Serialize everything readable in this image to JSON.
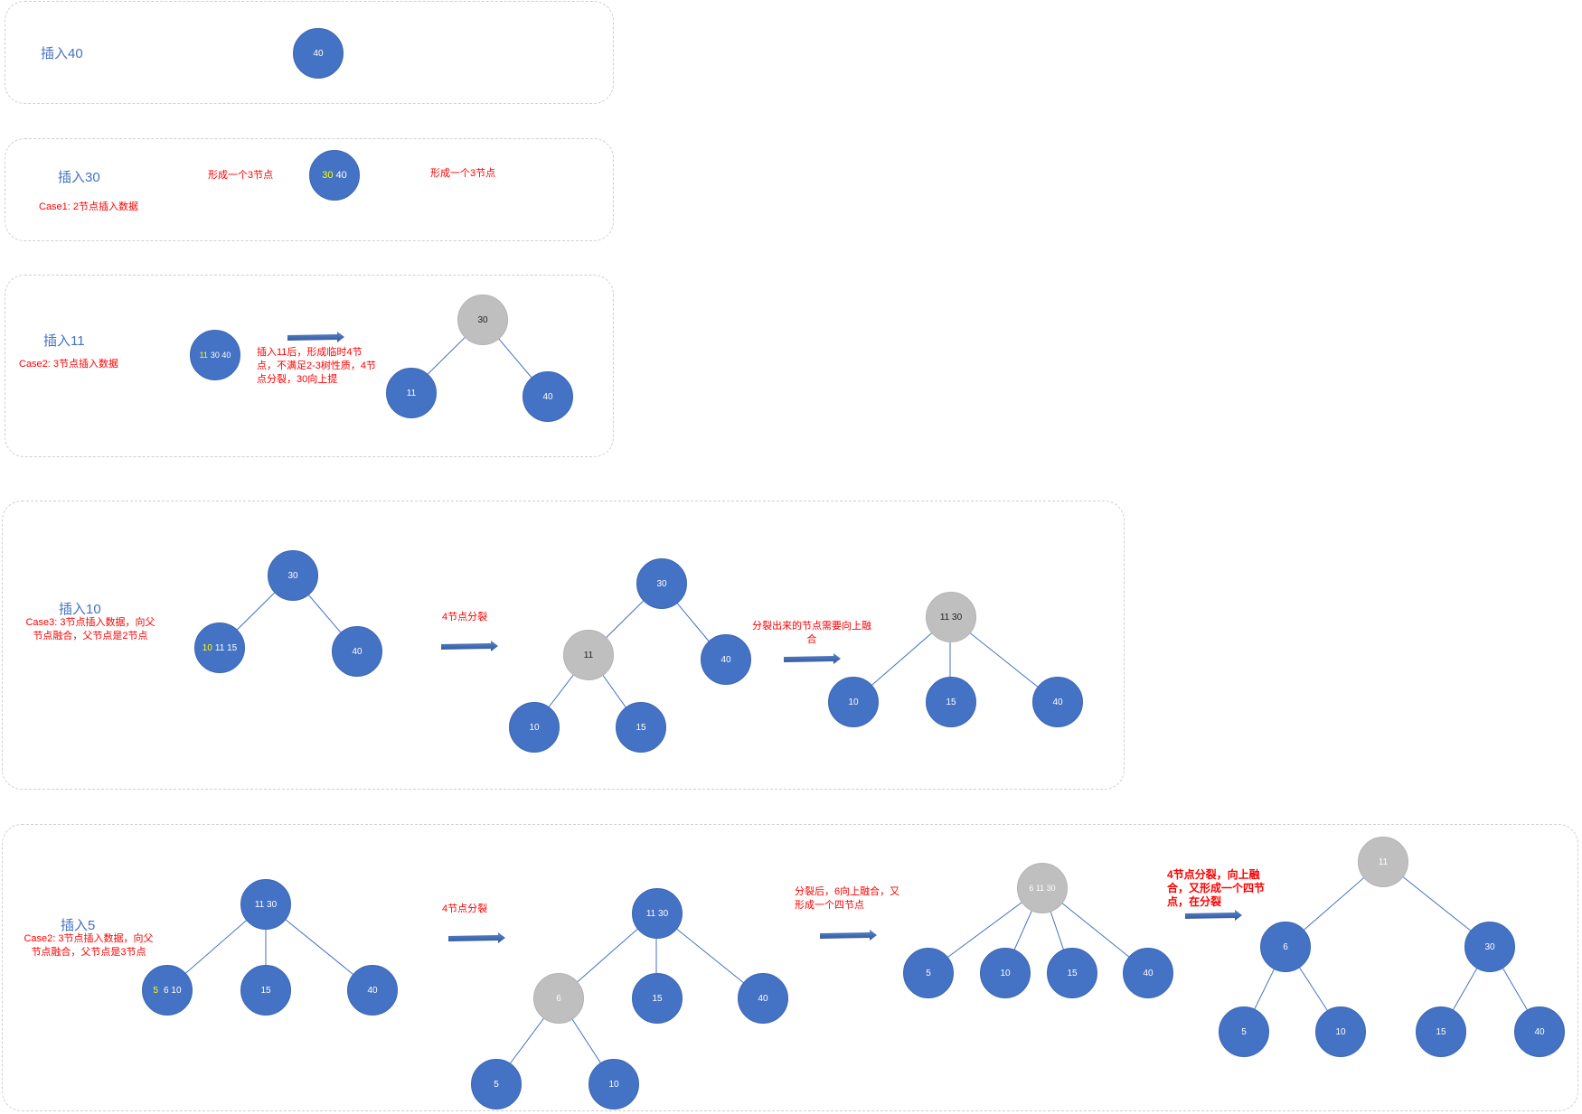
{
  "colors": {
    "node_blue": "#4472c4",
    "node_gray": "#bfbfbf",
    "highlight": "#ffff00",
    "note_red": "#ff0000",
    "title_blue": "#4472c4",
    "arrow": "#3a63a8"
  },
  "panel1": {
    "title": "插入40",
    "node_root": "40"
  },
  "panel2": {
    "title": "插入30",
    "case": "Case1: 2节点插入数据",
    "note_left": "形成一个3节点",
    "note_right": "形成一个3节点",
    "node_hl": "30",
    "node_rest": "40"
  },
  "panel3": {
    "title": "插入11",
    "case": "Case2: 3节点插入数据",
    "note": "插入11后，形成临时4节点，不满足2-3树性质，4节点分裂，30向上提",
    "temp_hl": "11",
    "temp_rest": "30 40",
    "root": "30",
    "left": "11",
    "right": "40"
  },
  "panel4": {
    "title": "插入10",
    "case": "Case3: 3节点插入数据，向父节点融合，父节点是2节点",
    "note_split": "4节点分裂",
    "note_merge": "分裂出来的节点需要向上融合",
    "t1_root": "30",
    "t1_left_hl": "10",
    "t1_left_rest": "11 15",
    "t1_right": "40",
    "t2_root": "30",
    "t2_mid": "11",
    "t2_right": "40",
    "t2_ll": "10",
    "t2_lr": "15",
    "t3_root": "11 30",
    "t3_c1": "10",
    "t3_c2": "15",
    "t3_c3": "40"
  },
  "panel5": {
    "title": "插入5",
    "case": "Case2: 3节点插入数据，向父节点融合，父节点是3节点",
    "note_split": "4节点分裂",
    "note_merge": "分裂后，6向上融合，又形成一个四节点",
    "note_final": "4节点分裂，向上融合，又形成一个四节点，在分裂",
    "t1_root": "11 30",
    "t1_c1_hl": "5",
    "t1_c1_rest": "6 10",
    "t1_c2": "15",
    "t1_c3": "40",
    "t2_root": "11 30",
    "t2_c1": "6",
    "t2_c2": "15",
    "t2_c3": "40",
    "t2_g1": "5",
    "t2_g2": "10",
    "t3_root": "6 11 30",
    "t3_c1": "5",
    "t3_c2": "10",
    "t3_c3": "15",
    "t3_c4": "40",
    "t4_root": "11",
    "t4_l": "6",
    "t4_r": "30",
    "t4_ll": "5",
    "t4_lr": "10",
    "t4_rl": "15",
    "t4_rr": "40"
  }
}
